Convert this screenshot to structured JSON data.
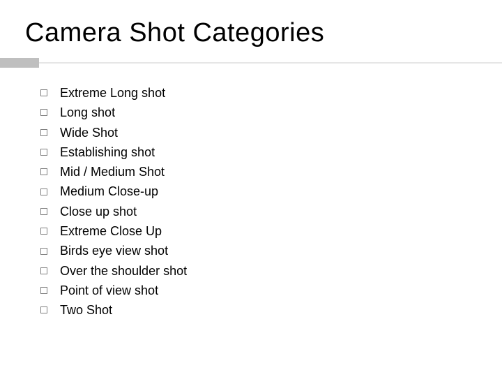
{
  "slide": {
    "title": "Camera Shot Categories",
    "items": [
      "Extreme Long shot",
      "Long shot",
      "Wide Shot",
      "Establishing shot",
      "Mid / Medium Shot",
      "Medium Close-up",
      "Close up shot",
      "Extreme Close Up",
      "Birds eye view shot",
      "Over the shoulder shot",
      "Point of view shot",
      "Two Shot"
    ]
  },
  "style": {
    "background_color": "#ffffff",
    "title_color": "#000000",
    "title_fontsize": 38,
    "item_fontsize": 18,
    "item_color": "#000000",
    "bullet_border_color": "#808080",
    "accent_block_color": "#bfbfbf",
    "divider_line_color": "#e6e6e6"
  }
}
